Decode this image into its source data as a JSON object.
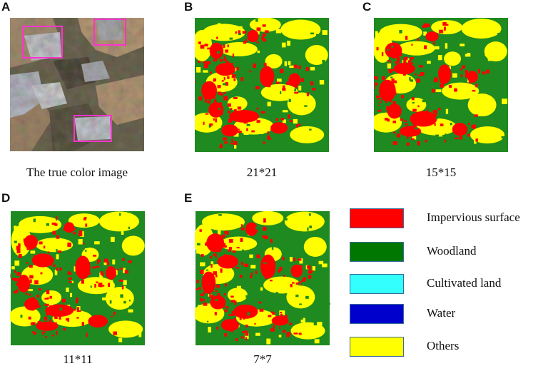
{
  "panels": [
    {
      "letter": "A",
      "caption": "The true color image",
      "type": "true-color"
    },
    {
      "letter": "B",
      "caption": "21*21",
      "type": "classification"
    },
    {
      "letter": "C",
      "caption": "15*15",
      "type": "classification"
    },
    {
      "letter": "D",
      "caption": "11*11",
      "type": "classification"
    },
    {
      "letter": "E",
      "caption": "7*7",
      "type": "classification"
    }
  ],
  "legend": [
    {
      "label": "Impervious surface",
      "color": "#ff0000"
    },
    {
      "label": "Woodland",
      "color": "#007700"
    },
    {
      "label": "Cultivated land",
      "color": "#33ffff"
    },
    {
      "label": "Water",
      "color": "#0000cc"
    },
    {
      "label": "Others",
      "color": "#ffff00"
    }
  ],
  "colors": {
    "woodland": "#1f8a1f",
    "others": "#ffff00",
    "impervious": "#ff0000",
    "highlight_box": "#ff33cc"
  }
}
